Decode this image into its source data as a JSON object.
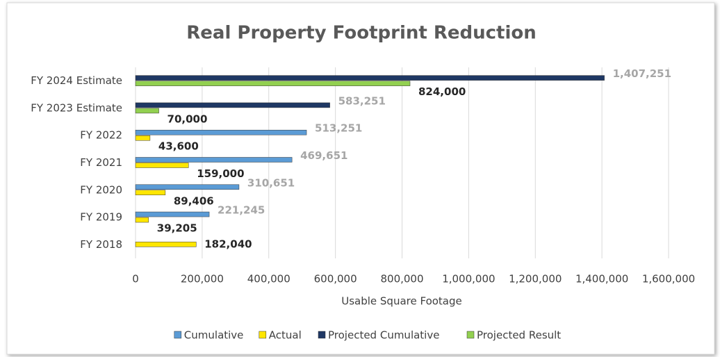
{
  "chart_data": {
    "type": "hbar",
    "title": "Real Property Footprint Reduction",
    "categories": [
      "FY 2018",
      "FY 2019",
      "FY 2020",
      "FY 2021",
      "FY 2022",
      "FY 2023 Estimate",
      "FY 2024 Estimate"
    ],
    "series": [
      {
        "name": "Cumulative",
        "color": "#5b9bd5",
        "values": [
          null,
          221245,
          310651,
          469651,
          513251,
          null,
          null
        ],
        "value_labels": [
          null,
          "221,245",
          "310,651",
          "469,651",
          "513,251",
          null,
          null
        ]
      },
      {
        "name": "Actual",
        "color": "#ffe600",
        "values": [
          182040,
          39205,
          89406,
          159000,
          43600,
          null,
          null
        ],
        "value_labels": [
          "182,040",
          "39,205",
          "89,406",
          "159,000",
          "43,600",
          null,
          null
        ]
      },
      {
        "name": "Projected Cumulative",
        "color": "#1f3864",
        "values": [
          null,
          null,
          null,
          null,
          null,
          583251,
          1407251
        ],
        "value_labels": [
          null,
          null,
          null,
          null,
          null,
          "583,251",
          "1,407,251"
        ]
      },
      {
        "name": "Projected Result",
        "color": "#92d050",
        "values": [
          null,
          null,
          null,
          null,
          null,
          70000,
          824000
        ],
        "value_labels": [
          null,
          null,
          null,
          null,
          null,
          "70,000",
          "824,000"
        ]
      }
    ],
    "xlabel": "Usable Square Footage",
    "xlim": [
      0,
      1600000
    ],
    "xticks": [
      0,
      {
        "value": 200000,
        "label": "200,000"
      },
      {
        "value": 400000,
        "label": "400,000"
      },
      {
        "value": 600000,
        "label": "600,000"
      },
      {
        "value": 800000,
        "label": "800,000"
      },
      {
        "value": 1000000,
        "label": "1,000,000"
      },
      {
        "value": 1200000,
        "label": "1,200,000"
      },
      {
        "value": 1400000,
        "label": "1,400,000"
      },
      {
        "value": 1600000,
        "label": "1,600,000"
      }
    ],
    "grid": true,
    "legend": "bottom"
  }
}
